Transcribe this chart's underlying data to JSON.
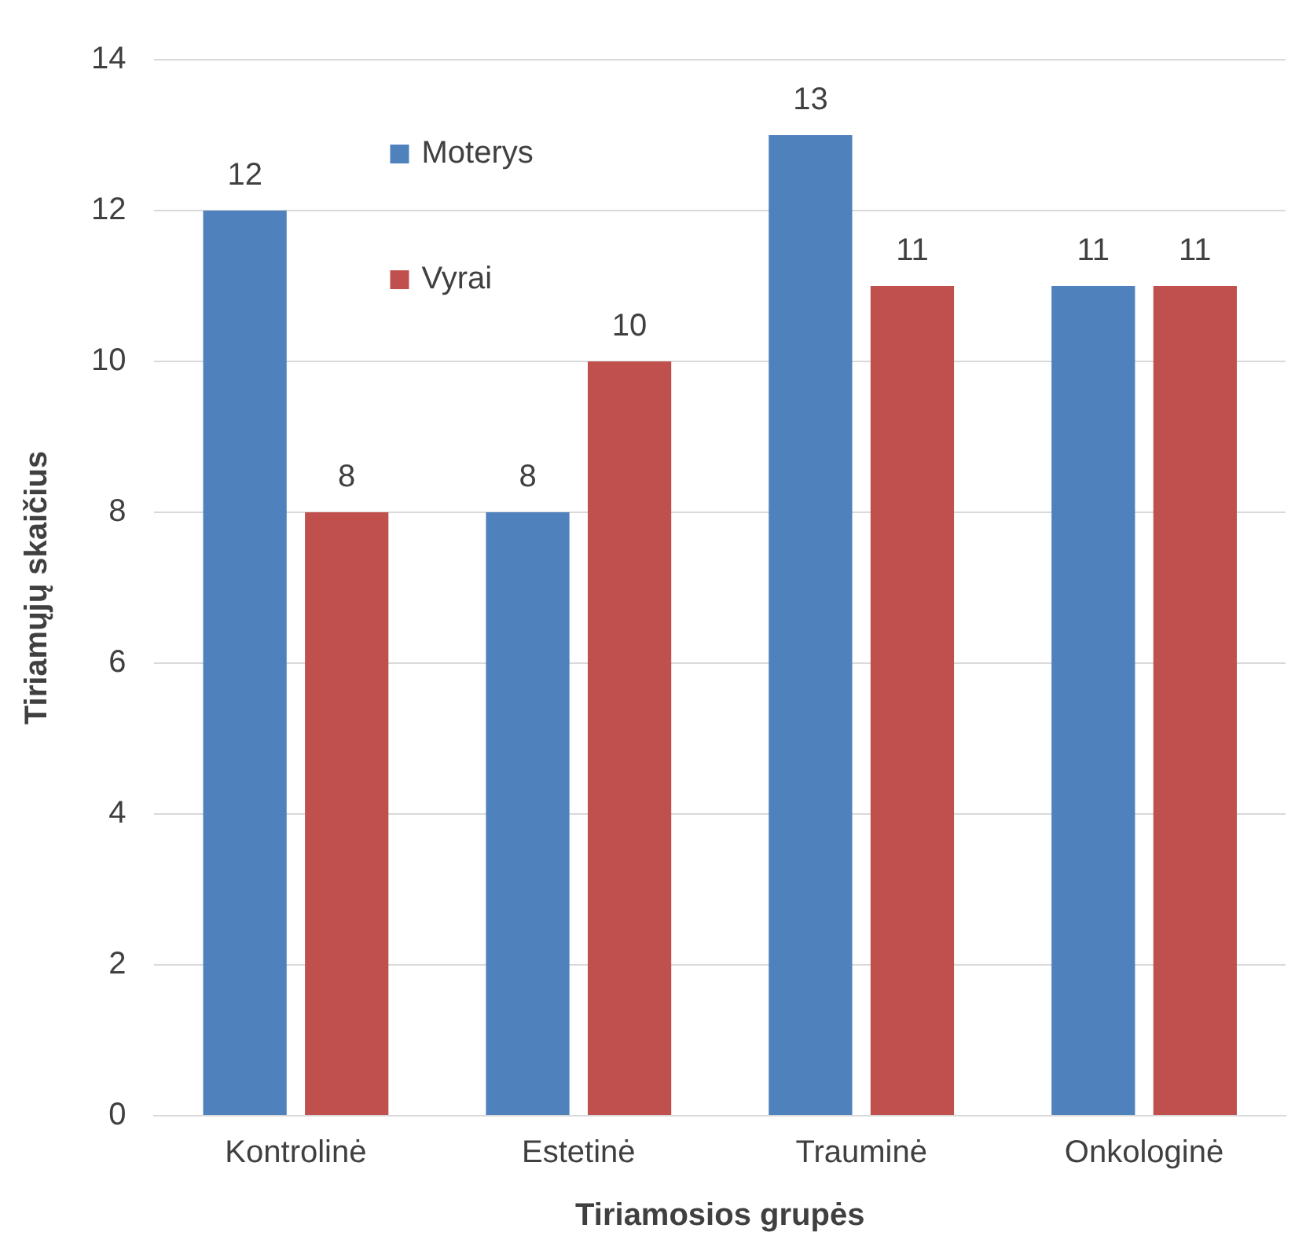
{
  "chart_data": {
    "type": "bar",
    "xlabel": "Tiriamosios grupės",
    "ylabel": "Tiriamųjų skaičius",
    "categories": [
      "Kontrolinė",
      "Estetinė",
      "Trauminė",
      "Onkologinė"
    ],
    "series": [
      {
        "name": "Moterys",
        "color": "#4f81bd",
        "values": [
          12,
          8,
          13,
          11
        ]
      },
      {
        "name": "Vyrai",
        "color": "#c0504d",
        "values": [
          8,
          10,
          11,
          11
        ]
      }
    ],
    "ylim": [
      0,
      14
    ],
    "yticks": [
      0,
      2,
      4,
      6,
      8,
      10,
      12,
      14
    ],
    "grid": "y",
    "legend": "top left",
    "data_labels": true
  }
}
